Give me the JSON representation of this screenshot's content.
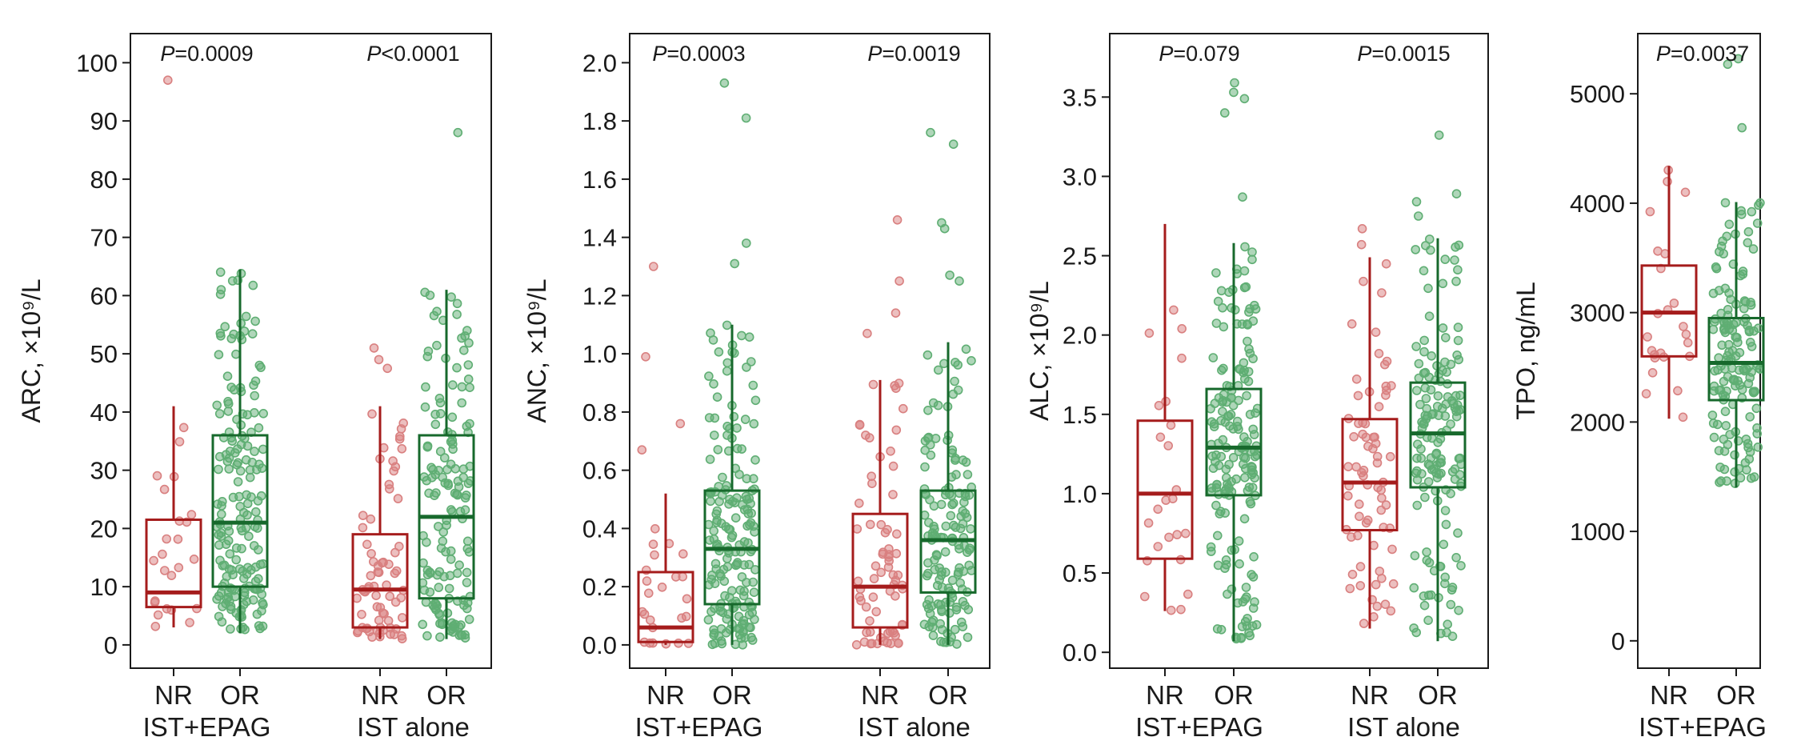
{
  "colors": {
    "NR": "#a51c1c",
    "OR": "#17692c",
    "NR_point": "#d98080",
    "OR_point": "#5fae73",
    "axis": "#1a1a1a"
  },
  "chart_data": [
    {
      "type": "box",
      "ylabel": "ARC, ×10⁹/L",
      "ylim": [
        -4,
        105
      ],
      "yticks": [
        0,
        10,
        20,
        30,
        40,
        50,
        60,
        70,
        80,
        90,
        100
      ],
      "groups": [
        {
          "label": "IST+EPAG",
          "p": "=0.0009",
          "boxes": [
            {
              "cat": "NR",
              "q1": 6.5,
              "median": 9,
              "q3": 21.5,
              "lo": 3,
              "hi": 41,
              "outliers": [
                97
              ],
              "n": 24
            },
            {
              "cat": "OR",
              "q1": 10,
              "median": 21,
              "q3": 36,
              "lo": 2,
              "hi": 64.5,
              "outliers": [],
              "n": 180
            }
          ]
        },
        {
          "label": "IST alone",
          "p": "<0.0001",
          "boxes": [
            {
              "cat": "NR",
              "q1": 3,
              "median": 9.5,
              "q3": 19,
              "lo": 1,
              "hi": 41,
              "outliers": [
                51,
                49,
                47.5
              ],
              "n": 70
            },
            {
              "cat": "OR",
              "q1": 8,
              "median": 22,
              "q3": 36,
              "lo": 1,
              "hi": 61,
              "outliers": [
                88
              ],
              "n": 150
            }
          ]
        }
      ]
    },
    {
      "type": "box",
      "ylabel": "ANC, ×10⁹/L",
      "ylim": [
        -0.08,
        2.1
      ],
      "yticks": [
        "0.0",
        "0.2",
        "0.4",
        "0.6",
        "0.8",
        "1.0",
        "1.2",
        "1.4",
        "1.6",
        "1.8",
        "2.0"
      ],
      "groups": [
        {
          "label": "IST+EPAG",
          "p": "=0.0003",
          "boxes": [
            {
              "cat": "NR",
              "q1": 0.01,
              "median": 0.06,
              "q3": 0.25,
              "lo": 0.0,
              "hi": 0.52,
              "outliers": [
                1.3,
                0.99,
                0.76,
                0.67
              ],
              "n": 24
            },
            {
              "cat": "OR",
              "q1": 0.14,
              "median": 0.33,
              "q3": 0.53,
              "lo": 0.0,
              "hi": 1.1,
              "outliers": [
                1.93,
                1.81,
                1.38,
                1.31
              ],
              "n": 180
            }
          ]
        },
        {
          "label": "IST alone",
          "p": "=0.0019",
          "boxes": [
            {
              "cat": "NR",
              "q1": 0.06,
              "median": 0.2,
              "q3": 0.45,
              "lo": 0.0,
              "hi": 0.91,
              "outliers": [
                1.46,
                1.25,
                1.14,
                1.07
              ],
              "n": 70
            },
            {
              "cat": "OR",
              "q1": 0.18,
              "median": 0.36,
              "q3": 0.53,
              "lo": 0.0,
              "hi": 1.04,
              "outliers": [
                1.76,
                1.72,
                1.45,
                1.43,
                1.27,
                1.25
              ],
              "n": 150
            }
          ]
        }
      ]
    },
    {
      "type": "box",
      "ylabel": "ALC, ×10⁹/L",
      "ylim": [
        -0.1,
        3.9
      ],
      "yticks": [
        "0.0",
        "0.5",
        "1.0",
        "1.5",
        "2.0",
        "2.5",
        "3.0",
        "3.5"
      ],
      "groups": [
        {
          "label": "IST+EPAG",
          "p": "=0.079",
          "boxes": [
            {
              "cat": "NR",
              "q1": 0.59,
              "median": 1.0,
              "q3": 1.46,
              "lo": 0.26,
              "hi": 2.7,
              "outliers": [],
              "n": 24
            },
            {
              "cat": "OR",
              "q1": 0.99,
              "median": 1.29,
              "q3": 1.66,
              "lo": 0.07,
              "hi": 2.58,
              "outliers": [
                3.59,
                3.53,
                3.49,
                3.4,
                2.87
              ],
              "n": 180
            }
          ]
        },
        {
          "label": "IST alone",
          "p": "=0.0015",
          "boxes": [
            {
              "cat": "NR",
              "q1": 0.77,
              "median": 1.07,
              "q3": 1.47,
              "lo": 0.15,
              "hi": 2.49,
              "outliers": [
                2.67,
                2.57
              ],
              "n": 70
            },
            {
              "cat": "OR",
              "q1": 1.04,
              "median": 1.38,
              "q3": 1.7,
              "lo": 0.07,
              "hi": 2.61,
              "outliers": [
                3.26,
                2.89,
                2.84,
                2.75
              ],
              "n": 150
            }
          ]
        }
      ]
    },
    {
      "type": "box",
      "ylabel": "TPO, ng/mL",
      "ylim": [
        -250,
        5550
      ],
      "yticks": [
        0,
        1000,
        2000,
        3000,
        4000,
        5000
      ],
      "groups": [
        {
          "label": "IST+EPAG",
          "p": "=0.0037",
          "boxes": [
            {
              "cat": "NR",
              "q1": 2600,
              "median": 3000,
              "q3": 3430,
              "lo": 2030,
              "hi": 4340,
              "outliers": [],
              "n": 24
            },
            {
              "cat": "OR",
              "q1": 2200,
              "median": 2540,
              "q3": 2950,
              "lo": 1400,
              "hi": 4010,
              "outliers": [
                5320,
                5270,
                4690
              ],
              "n": 150
            }
          ]
        }
      ]
    }
  ]
}
